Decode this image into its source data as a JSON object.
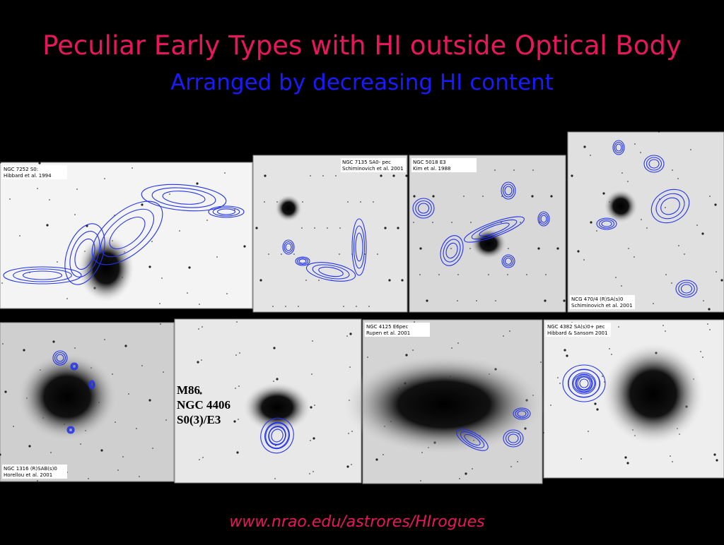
{
  "header": {
    "title": "Peculiar Early Types with HI outside Optical Body",
    "subtitle": "Arranged by decreasing HI content"
  },
  "panels": [
    {
      "lines": [
        "NGC 7252   S0:",
        "Hibbard et al. 1994"
      ]
    },
    {
      "lines": [
        "NGC 7135  SA0- pec",
        "Schiminovich et al. 2001"
      ]
    },
    {
      "lines": [
        "NGC 5018  E3",
        "Kim et al. 1988"
      ]
    },
    {
      "lines": [
        "NCG 470/4   (R)SA(s)0",
        "Schiminovich et al. 2001"
      ]
    },
    {
      "lines": [
        "NGC 1316  (R)SAB(s)0",
        "Horellou et al. 2001"
      ]
    },
    {
      "lines": [
        "M86",
        "NGC 4406",
        "S0(3)/E3"
      ]
    },
    {
      "lines": [
        "NGC 4125   E6pec",
        "Rupen et al. 2001"
      ]
    },
    {
      "lines": [
        "NGC 4382  SA(s)0+ pec",
        "Hibbard & Sansom 2001"
      ]
    }
  ],
  "footer": {
    "url": "www.nrao.edu/astrores/HIrogues"
  }
}
